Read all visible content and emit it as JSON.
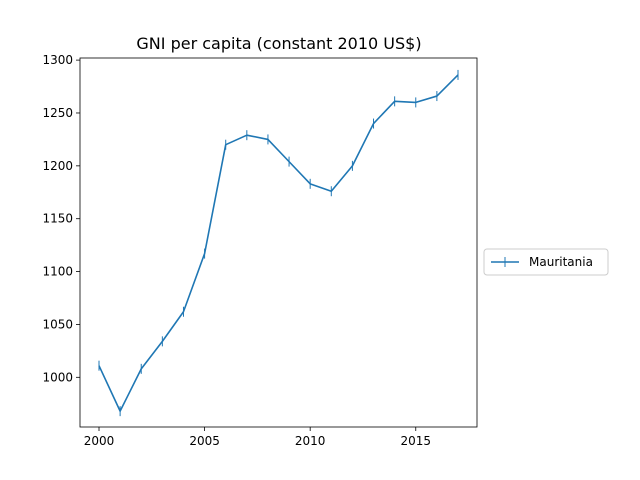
{
  "chart_data": {
    "type": "line",
    "title": "GNI per capita (constant 2010 US$)",
    "xlabel": "",
    "ylabel": "",
    "xlim": [
      1999.1,
      2017.9
    ],
    "ylim": [
      953,
      1302
    ],
    "xticks": [
      2000,
      2005,
      2010,
      2015
    ],
    "yticks": [
      1000,
      1050,
      1100,
      1150,
      1200,
      1250,
      1300
    ],
    "grid": false,
    "legend_position": "right",
    "series": [
      {
        "name": "Mauritania",
        "color": "#1f77b4",
        "marker": "vline",
        "x": [
          2000,
          2001,
          2002,
          2003,
          2004,
          2005,
          2006,
          2007,
          2008,
          2009,
          2010,
          2011,
          2012,
          2013,
          2014,
          2015,
          2016,
          2017
        ],
        "y": [
          1011,
          968,
          1008,
          1034,
          1062,
          1117,
          1220,
          1229,
          1225,
          1204,
          1183,
          1176,
          1200,
          1240,
          1261,
          1260,
          1266,
          1286
        ]
      }
    ]
  }
}
